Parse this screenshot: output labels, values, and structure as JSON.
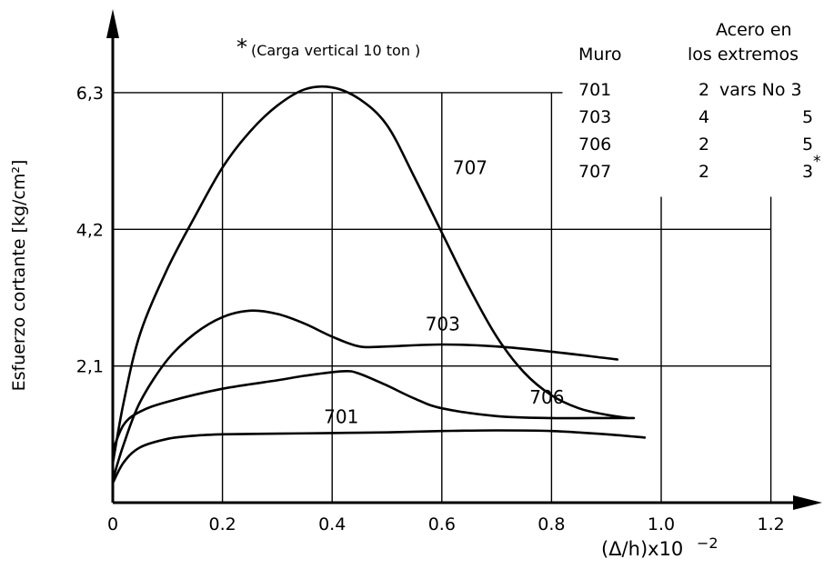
{
  "chart_data": {
    "type": "line",
    "title": "",
    "xlabel": "(Δ/h)x10",
    "xlabel_exponent": "−2",
    "ylabel": "Esfuerzo cortante  [kg/cm²]",
    "xlim": [
      0,
      1.3
    ],
    "ylim": [
      0,
      7.2
    ],
    "x_ticks": [
      {
        "value": 0,
        "label": "0"
      },
      {
        "value": 0.2,
        "label": "0.2"
      },
      {
        "value": 0.4,
        "label": "0.4"
      },
      {
        "value": 0.6,
        "label": "0.6"
      },
      {
        "value": 0.8,
        "label": "0.8"
      },
      {
        "value": 1.0,
        "label": "1.0"
      },
      {
        "value": 1.2,
        "label": "1.2"
      }
    ],
    "y_ticks": [
      {
        "value": 2.1,
        "label": "2,1"
      },
      {
        "value": 4.2,
        "label": "4,2"
      },
      {
        "value": 6.3,
        "label": "6,3"
      }
    ],
    "grid": true,
    "annotation": "(Carga vertical  10  ton )",
    "annotation_mark": "*",
    "series": [
      {
        "name": "707",
        "values": [
          [
            0.0,
            0.6
          ],
          [
            0.02,
            1.55
          ],
          [
            0.05,
            2.6
          ],
          [
            0.1,
            3.6
          ],
          [
            0.15,
            4.4
          ],
          [
            0.2,
            5.15
          ],
          [
            0.25,
            5.7
          ],
          [
            0.3,
            6.1
          ],
          [
            0.35,
            6.35
          ],
          [
            0.4,
            6.38
          ],
          [
            0.45,
            6.2
          ],
          [
            0.5,
            5.8
          ],
          [
            0.55,
            5.0
          ],
          [
            0.6,
            4.15
          ],
          [
            0.65,
            3.3
          ],
          [
            0.7,
            2.55
          ],
          [
            0.75,
            2.0
          ],
          [
            0.8,
            1.65
          ],
          [
            0.85,
            1.45
          ],
          [
            0.9,
            1.35
          ],
          [
            0.94,
            1.3
          ]
        ]
      },
      {
        "name": "703",
        "values": [
          [
            0.0,
            0.35
          ],
          [
            0.02,
            0.9
          ],
          [
            0.05,
            1.55
          ],
          [
            0.1,
            2.2
          ],
          [
            0.15,
            2.6
          ],
          [
            0.2,
            2.85
          ],
          [
            0.25,
            2.95
          ],
          [
            0.3,
            2.9
          ],
          [
            0.35,
            2.75
          ],
          [
            0.4,
            2.55
          ],
          [
            0.45,
            2.4
          ],
          [
            0.5,
            2.4
          ],
          [
            0.6,
            2.43
          ],
          [
            0.7,
            2.4
          ],
          [
            0.8,
            2.32
          ],
          [
            0.9,
            2.22
          ],
          [
            0.92,
            2.2
          ]
        ]
      },
      {
        "name": "706",
        "values": [
          [
            0.0,
            0.8
          ],
          [
            0.02,
            1.2
          ],
          [
            0.05,
            1.4
          ],
          [
            0.1,
            1.55
          ],
          [
            0.2,
            1.75
          ],
          [
            0.3,
            1.88
          ],
          [
            0.35,
            1.95
          ],
          [
            0.42,
            2.02
          ],
          [
            0.45,
            1.98
          ],
          [
            0.5,
            1.8
          ],
          [
            0.55,
            1.6
          ],
          [
            0.6,
            1.45
          ],
          [
            0.7,
            1.33
          ],
          [
            0.8,
            1.3
          ],
          [
            0.9,
            1.3
          ],
          [
            0.95,
            1.3
          ]
        ]
      },
      {
        "name": "701",
        "values": [
          [
            0.0,
            0.3
          ],
          [
            0.02,
            0.62
          ],
          [
            0.05,
            0.85
          ],
          [
            0.1,
            0.98
          ],
          [
            0.15,
            1.03
          ],
          [
            0.2,
            1.05
          ],
          [
            0.3,
            1.06
          ],
          [
            0.4,
            1.07
          ],
          [
            0.5,
            1.08
          ],
          [
            0.6,
            1.1
          ],
          [
            0.7,
            1.11
          ],
          [
            0.8,
            1.1
          ],
          [
            0.9,
            1.05
          ],
          [
            0.97,
            1.0
          ]
        ]
      }
    ],
    "curve_labels": [
      {
        "series": "707",
        "text": "707",
        "x": 0.62,
        "y": 5.05
      },
      {
        "series": "703",
        "text": "703",
        "x": 0.57,
        "y": 2.65
      },
      {
        "series": "706",
        "text": "706",
        "x": 0.76,
        "y": 1.52
      },
      {
        "series": "701",
        "text": "701",
        "x": 0.385,
        "y": 1.22
      }
    ],
    "table": {
      "col1_header": "Muro",
      "col2_header_line1": "Acero en",
      "col2_header_line2": "los  extremos",
      "rows": [
        {
          "muro": "701",
          "a": "2",
          "b": "vars No 3",
          "star": ""
        },
        {
          "muro": "703",
          "a": "4",
          "b": "5",
          "star": ""
        },
        {
          "muro": "706",
          "a": "2",
          "b": "5",
          "star": ""
        },
        {
          "muro": "707",
          "a": "2",
          "b": "3",
          "star": "*"
        }
      ]
    }
  }
}
